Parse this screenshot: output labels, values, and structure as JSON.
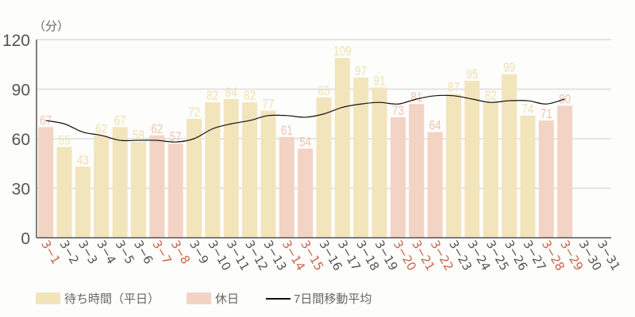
{
  "chart_data": {
    "type": "bar",
    "title": "",
    "unit_label": "（分）",
    "xlabel": "",
    "ylabel": "（分）",
    "ylim": [
      0,
      120
    ],
    "yticks": [
      0,
      30,
      60,
      90,
      120
    ],
    "grid": true,
    "legend_position": "bottom",
    "categories": [
      "3-1",
      "3-2",
      "3-3",
      "3-4",
      "3-5",
      "3-6",
      "3-7",
      "3-8",
      "3-9",
      "3-10",
      "3-11",
      "3-12",
      "3-13",
      "3-14",
      "3-15",
      "3-16",
      "3-17",
      "3-18",
      "3-19",
      "3-20",
      "3-21",
      "3-22",
      "3-23",
      "3-24",
      "3-25",
      "3-26",
      "3-27",
      "3-28",
      "3-29",
      "3-30",
      "3-31"
    ],
    "holiday": [
      true,
      false,
      false,
      false,
      false,
      false,
      true,
      true,
      false,
      false,
      false,
      false,
      false,
      true,
      true,
      false,
      false,
      false,
      false,
      true,
      true,
      true,
      false,
      false,
      false,
      false,
      false,
      true,
      true,
      false,
      false
    ],
    "values": [
      67,
      55,
      43,
      62,
      67,
      58,
      62,
      57,
      72,
      82,
      84,
      82,
      77,
      61,
      54,
      85,
      109,
      97,
      91,
      73,
      81,
      64,
      87,
      95,
      82,
      99,
      74,
      71,
      80,
      null,
      null
    ],
    "moving_average": [
      71,
      69,
      64,
      62,
      59,
      59,
      59,
      58,
      60,
      66,
      69,
      71,
      74,
      74,
      73,
      75,
      79,
      81,
      82,
      81,
      84,
      86,
      86,
      84,
      82,
      83,
      83,
      81,
      84,
      null,
      null
    ],
    "series": [
      {
        "name": "待ち時間（平日）",
        "color": "#f2e4bb"
      },
      {
        "name": "休日",
        "color": "#f3d3c3"
      },
      {
        "name": "7日間移動平均",
        "color": "#111111"
      }
    ]
  },
  "colors": {
    "weekday_bar": "#f2e4bb",
    "holiday_bar": "#f3d3c3",
    "weekday_label": "#f0e0b0",
    "holiday_label": "#efc4b2",
    "weekday_tick": "#555555",
    "holiday_tick": "#c8664a",
    "axis": "#555555",
    "grid": "#dcdcdc",
    "line": "#111111"
  },
  "legend": {
    "weekday": "待ち時間（平日）",
    "holiday": "休日",
    "moving_avg": "7日間移動平均"
  }
}
